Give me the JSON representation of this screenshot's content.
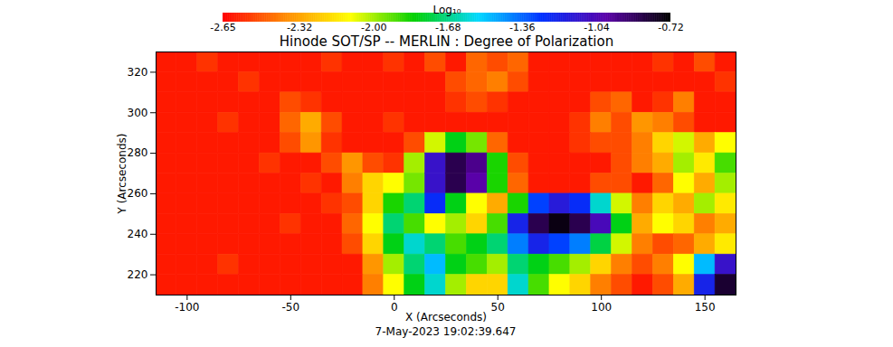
{
  "chart_data": {
    "type": "heatmap",
    "title": "Hinode SOT/SP -- MERLIN : Degree of Polarization",
    "caption": "7-May-2023 19:02:39.647",
    "x_label": "X (Arcseconds)",
    "y_label": "Y (Arcseconds)",
    "xlim": [
      -115,
      165
    ],
    "xticks": [
      -100,
      -50,
      0,
      50,
      100,
      150
    ],
    "ylim": [
      210,
      330
    ],
    "yticks": [
      220,
      240,
      260,
      280,
      300,
      320
    ],
    "x": [
      -110,
      -100,
      -90,
      -80,
      -70,
      -60,
      -50,
      -40,
      -30,
      -20,
      -10,
      0,
      10,
      20,
      30,
      40,
      50,
      60,
      70,
      80,
      90,
      100,
      110,
      120,
      130,
      140,
      150,
      160
    ],
    "y": [
      325,
      315,
      305,
      295,
      285,
      275,
      265,
      255,
      245,
      235,
      225,
      215
    ],
    "z": [
      [
        -2.6,
        -2.6,
        -2.55,
        -2.6,
        -2.6,
        -2.6,
        -2.6,
        -2.6,
        -2.55,
        -2.6,
        -2.6,
        -2.55,
        -2.6,
        -2.5,
        -2.6,
        -2.45,
        -2.5,
        -2.45,
        -2.6,
        -2.6,
        -2.6,
        -2.6,
        -2.6,
        -2.6,
        -2.55,
        -2.6,
        -2.5,
        -2.6
      ],
      [
        -2.6,
        -2.6,
        -2.6,
        -2.6,
        -2.55,
        -2.6,
        -2.6,
        -2.6,
        -2.6,
        -2.6,
        -2.6,
        -2.6,
        -2.6,
        -2.6,
        -2.5,
        -2.45,
        -2.4,
        -2.5,
        -2.6,
        -2.6,
        -2.6,
        -2.6,
        -2.6,
        -2.6,
        -2.6,
        -2.6,
        -2.6,
        -2.55
      ],
      [
        -2.6,
        -2.6,
        -2.6,
        -2.6,
        -2.6,
        -2.6,
        -2.5,
        -2.55,
        -2.6,
        -2.6,
        -2.6,
        -2.6,
        -2.6,
        -2.6,
        -2.55,
        -2.5,
        -2.55,
        -2.6,
        -2.6,
        -2.6,
        -2.6,
        -2.5,
        -2.45,
        -2.6,
        -2.55,
        -2.4,
        -2.6,
        -2.6
      ],
      [
        -2.6,
        -2.6,
        -2.6,
        -2.55,
        -2.6,
        -2.6,
        -2.45,
        -2.3,
        -2.5,
        -2.6,
        -2.6,
        -2.55,
        -2.6,
        -2.6,
        -2.6,
        -2.6,
        -2.6,
        -2.6,
        -2.6,
        -2.6,
        -2.55,
        -2.4,
        -2.5,
        -2.35,
        -2.4,
        -2.5,
        -2.6,
        -2.6
      ],
      [
        -2.6,
        -2.6,
        -2.6,
        -2.6,
        -2.6,
        -2.6,
        -2.5,
        -2.35,
        -2.55,
        -2.6,
        -2.6,
        -2.6,
        -2.5,
        -2.05,
        -1.8,
        -1.95,
        -2.45,
        -2.6,
        -2.6,
        -2.6,
        -2.55,
        -2.5,
        -2.5,
        -2.4,
        -2.2,
        -2.05,
        -2.3,
        -2.1
      ],
      [
        -2.6,
        -2.6,
        -2.6,
        -2.6,
        -2.6,
        -2.55,
        -2.6,
        -2.6,
        -2.5,
        -2.35,
        -2.5,
        -2.55,
        -2.0,
        -1.1,
        -0.85,
        -0.95,
        -1.85,
        -2.5,
        -2.6,
        -2.6,
        -2.6,
        -2.6,
        -2.5,
        -2.4,
        -2.3,
        -2.0,
        -2.15,
        -1.9
      ],
      [
        -2.6,
        -2.6,
        -2.6,
        -2.6,
        -2.6,
        -2.6,
        -2.6,
        -2.55,
        -2.6,
        -2.4,
        -2.2,
        -2.1,
        -1.95,
        -1.1,
        -0.85,
        -1.0,
        -1.85,
        -2.45,
        -2.6,
        -2.6,
        -2.6,
        -2.5,
        -2.5,
        -2.6,
        -2.45,
        -2.1,
        -2.3,
        -2.0
      ],
      [
        -2.6,
        -2.6,
        -2.6,
        -2.6,
        -2.6,
        -2.6,
        -2.6,
        -2.6,
        -2.55,
        -2.5,
        -2.2,
        -1.85,
        -1.7,
        -1.25,
        -1.8,
        -2.1,
        -2.3,
        -1.85,
        -1.3,
        -1.15,
        -1.25,
        -1.6,
        -2.05,
        -2.4,
        -2.2,
        -2.3,
        -2.0,
        -2.15
      ],
      [
        -2.6,
        -2.6,
        -2.6,
        -2.6,
        -2.6,
        -2.6,
        -2.55,
        -2.6,
        -2.6,
        -2.45,
        -2.1,
        -1.7,
        -1.9,
        -2.1,
        -2.0,
        -2.2,
        -1.9,
        -1.2,
        -0.85,
        -0.75,
        -0.85,
        -1.05,
        -1.8,
        -2.3,
        -2.1,
        -2.2,
        -2.4,
        -2.3
      ],
      [
        -2.6,
        -2.6,
        -2.6,
        -2.6,
        -2.6,
        -2.6,
        -2.6,
        -2.6,
        -2.6,
        -2.5,
        -2.2,
        -1.8,
        -1.6,
        -1.7,
        -1.9,
        -1.8,
        -1.7,
        -1.4,
        -1.2,
        -1.3,
        -1.4,
        -1.75,
        -2.05,
        -2.4,
        -2.5,
        -2.45,
        -2.3,
        -2.15
      ],
      [
        -2.6,
        -2.6,
        -2.6,
        -2.55,
        -2.6,
        -2.6,
        -2.6,
        -2.6,
        -2.6,
        -2.6,
        -2.35,
        -2.0,
        -1.7,
        -1.5,
        -1.8,
        -1.9,
        -2.0,
        -1.7,
        -1.8,
        -1.9,
        -2.0,
        -2.2,
        -2.4,
        -2.5,
        -2.4,
        -2.1,
        -1.5,
        -1.1
      ],
      [
        -2.6,
        -2.6,
        -2.6,
        -2.6,
        -2.6,
        -2.6,
        -2.6,
        -2.6,
        -2.6,
        -2.6,
        -2.4,
        -2.1,
        -1.8,
        -1.6,
        -2.0,
        -2.2,
        -2.2,
        -1.6,
        -1.9,
        -2.1,
        -2.2,
        -2.4,
        -2.5,
        -2.6,
        -2.5,
        -2.3,
        -1.2,
        -0.8
      ]
    ],
    "colorbar_label": "Log₁₀",
    "zlim": [
      -2.65,
      -0.72
    ],
    "zticks": [
      -2.65,
      -2.32,
      {
        "value": -2,
        "label": "-2.00"
      },
      -1.68,
      -1.36,
      -1.04,
      -0.72
    ]
  }
}
